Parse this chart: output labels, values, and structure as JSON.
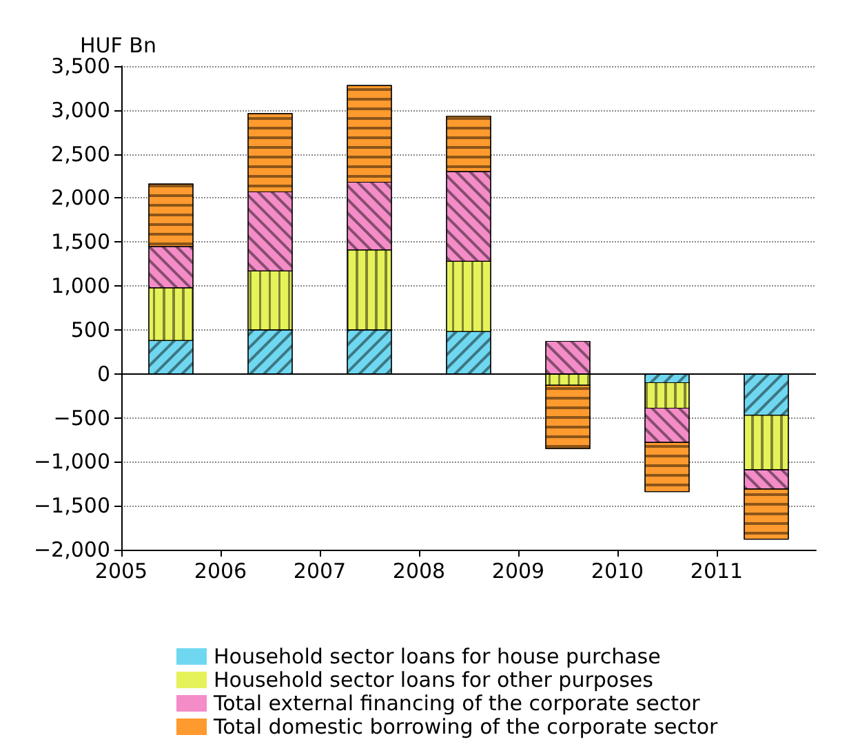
{
  "chart_data": {
    "type": "bar",
    "stacked": true,
    "ylabel": "HUF Bn",
    "x": [
      2005.5,
      2006.5,
      2007.5,
      2008.5,
      2009.5,
      2010.5,
      2011.5
    ],
    "xlim": [
      2005,
      2012
    ],
    "xticks": [
      2005,
      2006,
      2007,
      2008,
      2009,
      2010,
      2011
    ],
    "ylim": [
      -2000,
      3500
    ],
    "yticks": [
      {
        "value": -2000,
        "label": "−2,000"
      },
      {
        "value": -1500,
        "label": "−1,500"
      },
      {
        "value": -1000,
        "label": "−1,000"
      },
      {
        "value": -500,
        "label": "−500"
      },
      0,
      500,
      {
        "value": 1000,
        "label": "1,000"
      },
      {
        "value": 1500,
        "label": "1,500"
      },
      {
        "value": 2000,
        "label": "2,000"
      },
      {
        "value": 2500,
        "label": "2,500"
      },
      {
        "value": 3000,
        "label": "3,000"
      },
      {
        "value": 3500,
        "label": "3,500"
      }
    ],
    "series": [
      {
        "name": "Household sector loans for house purchase",
        "color": "#6fd8f0",
        "values": [
          380,
          500,
          500,
          480,
          null,
          -100,
          -470
        ]
      },
      {
        "name": "Household sector loans for other purposes",
        "color": "#e6f25a",
        "values": [
          600,
          670,
          910,
          800,
          -130,
          -290,
          -620
        ]
      },
      {
        "name": "Total external financing of the corporate sector",
        "color": "#f48cc8",
        "values": [
          470,
          900,
          770,
          1020,
          370,
          -390,
          -220
        ]
      },
      {
        "name": "Total domestic borrowing of the corporate sector",
        "color": "#ff9a2e",
        "values": [
          710,
          890,
          1100,
          630,
          -720,
          -560,
          -570
        ]
      }
    ],
    "ref_lines": [
      {
        "axis": "y",
        "value": 0
      }
    ],
    "grid": "y",
    "legend": "bottom"
  }
}
